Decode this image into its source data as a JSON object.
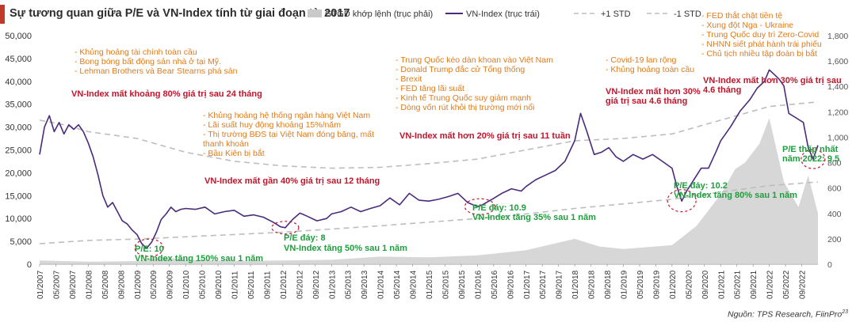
{
  "title": "Sự tương quan giữa P/E và VN-Index tính từ giai đoạn từ 2017",
  "source": "Nguồn: TPS Research, FiinPro",
  "colors": {
    "vnindex": "#4b2a7b",
    "gtgd": "#c9c9c9",
    "std": "#bdbdbd",
    "orange_text": "#e07b1a",
    "red_text": "#c0152b",
    "green_text": "#1e9e3c",
    "circle": "#c0152b",
    "title_accent": "#c0392b"
  },
  "chart_data": {
    "type": "line",
    "title": "Sự tương quan giữa P/E và VN-Index tính từ giai đoạn từ 2017",
    "legend": [
      {
        "label": "GTGD khớp lệnh (trục phải)",
        "style": "area"
      },
      {
        "label": "VN-Index (trục trái)",
        "style": "line"
      },
      {
        "label": "+1 STD",
        "style": "dashed"
      },
      {
        "label": "-1 STD",
        "style": "dashed"
      }
    ],
    "legend_position": "top",
    "y_left": {
      "ticks": [
        0,
        5000,
        10000,
        15000,
        20000,
        25000,
        30000,
        35000,
        40000,
        45000,
        50000
      ],
      "labels": [
        "0",
        "5,000",
        "10,000",
        "15,000",
        "20,000",
        "25,000",
        "30,000",
        "35,000",
        "40,000",
        "45,000",
        "50,000"
      ],
      "ylim": [
        0,
        50000
      ]
    },
    "y_right": {
      "ticks": [
        0,
        200,
        400,
        600,
        800,
        1000,
        1200,
        1400,
        1600,
        1800
      ],
      "labels": [
        "0",
        "200",
        "400",
        "600",
        "800",
        "1,000",
        "1,200",
        "1,400",
        "1,600",
        "1,800"
      ],
      "ylim": [
        0,
        1800
      ]
    },
    "x_labels": [
      "01/2007",
      "05/2007",
      "09/2007",
      "01/2008",
      "05/2008",
      "09/2008",
      "01/2009",
      "05/2009",
      "09/2009",
      "01/2010",
      "05/2010",
      "09/2010",
      "01/2011",
      "05/2011",
      "09/2011",
      "01/2012",
      "05/2012",
      "09/2012",
      "01/2013",
      "05/2013",
      "09/2013",
      "01/2014",
      "05/2014",
      "09/2014",
      "01/2015",
      "05/2015",
      "09/2015",
      "01/2016",
      "05/2016",
      "09/2016",
      "01/2017",
      "05/2017",
      "09/2017",
      "01/2018",
      "05/2018",
      "09/2018",
      "01/2019",
      "05/2019",
      "09/2019",
      "01/2020",
      "05/2020",
      "09/2020",
      "01/2021",
      "05/2021",
      "09/2021",
      "01/2022",
      "05/2022",
      "09/2022"
    ],
    "series": [
      {
        "name": "VN-Index (trục trái)",
        "axis": "left",
        "points": [
          [
            2007.0,
            24000
          ],
          [
            2007.1,
            30000
          ],
          [
            2007.2,
            32500
          ],
          [
            2007.3,
            29000
          ],
          [
            2007.4,
            31000
          ],
          [
            2007.5,
            28500
          ],
          [
            2007.6,
            30500
          ],
          [
            2007.7,
            29500
          ],
          [
            2007.8,
            30500
          ],
          [
            2007.9,
            29000
          ],
          [
            2008.0,
            26500
          ],
          [
            2008.1,
            23500
          ],
          [
            2008.2,
            19500
          ],
          [
            2008.3,
            15000
          ],
          [
            2008.4,
            12500
          ],
          [
            2008.5,
            13500
          ],
          [
            2008.6,
            11500
          ],
          [
            2008.7,
            9500
          ],
          [
            2008.8,
            8800
          ],
          [
            2008.9,
            7500
          ],
          [
            2009.0,
            6500
          ],
          [
            2009.1,
            4500
          ],
          [
            2009.2,
            3500
          ],
          [
            2009.3,
            4800
          ],
          [
            2009.4,
            7000
          ],
          [
            2009.5,
            9800
          ],
          [
            2009.6,
            11000
          ],
          [
            2009.7,
            12500
          ],
          [
            2009.8,
            11500
          ],
          [
            2009.9,
            12000
          ],
          [
            2010.0,
            12200
          ],
          [
            2010.2,
            12000
          ],
          [
            2010.4,
            12500
          ],
          [
            2010.6,
            11000
          ],
          [
            2010.8,
            11500
          ],
          [
            2011.0,
            11800
          ],
          [
            2011.2,
            10500
          ],
          [
            2011.4,
            10800
          ],
          [
            2011.6,
            10300
          ],
          [
            2011.8,
            9200
          ],
          [
            2011.95,
            8200
          ],
          [
            2012.05,
            8000
          ],
          [
            2012.2,
            9800
          ],
          [
            2012.35,
            11200
          ],
          [
            2012.5,
            10500
          ],
          [
            2012.7,
            9500
          ],
          [
            2012.9,
            10000
          ],
          [
            2013.0,
            11000
          ],
          [
            2013.2,
            11500
          ],
          [
            2013.4,
            12500
          ],
          [
            2013.6,
            11500
          ],
          [
            2013.8,
            12200
          ],
          [
            2014.0,
            12800
          ],
          [
            2014.2,
            14500
          ],
          [
            2014.4,
            13000
          ],
          [
            2014.6,
            15500
          ],
          [
            2014.8,
            14000
          ],
          [
            2015.0,
            13800
          ],
          [
            2015.2,
            14200
          ],
          [
            2015.4,
            14800
          ],
          [
            2015.6,
            15500
          ],
          [
            2015.8,
            13500
          ],
          [
            2016.0,
            12600
          ],
          [
            2016.1,
            13000
          ],
          [
            2016.3,
            14200
          ],
          [
            2016.5,
            15500
          ],
          [
            2016.7,
            16500
          ],
          [
            2016.9,
            16000
          ],
          [
            2017.0,
            17000
          ],
          [
            2017.2,
            18500
          ],
          [
            2017.4,
            19500
          ],
          [
            2017.6,
            20500
          ],
          [
            2017.8,
            22500
          ],
          [
            2018.0,
            27000
          ],
          [
            2018.12,
            33000
          ],
          [
            2018.25,
            29000
          ],
          [
            2018.4,
            24000
          ],
          [
            2018.55,
            24500
          ],
          [
            2018.7,
            25500
          ],
          [
            2018.85,
            23500
          ],
          [
            2019.0,
            22500
          ],
          [
            2019.2,
            24000
          ],
          [
            2019.4,
            23000
          ],
          [
            2019.6,
            24000
          ],
          [
            2019.8,
            22500
          ],
          [
            2020.0,
            21000
          ],
          [
            2020.1,
            17000
          ],
          [
            2020.2,
            13800
          ],
          [
            2020.3,
            16000
          ],
          [
            2020.45,
            18500
          ],
          [
            2020.6,
            21000
          ],
          [
            2020.75,
            21000
          ],
          [
            2020.9,
            24500
          ],
          [
            2021.0,
            27000
          ],
          [
            2021.2,
            30000
          ],
          [
            2021.4,
            33500
          ],
          [
            2021.6,
            36000
          ],
          [
            2021.75,
            38500
          ],
          [
            2021.9,
            40000
          ],
          [
            2022.0,
            42500
          ],
          [
            2022.1,
            41500
          ],
          [
            2022.2,
            40500
          ],
          [
            2022.3,
            39000
          ],
          [
            2022.4,
            33000
          ],
          [
            2022.55,
            32000
          ],
          [
            2022.7,
            31000
          ],
          [
            2022.8,
            25500
          ],
          [
            2022.9,
            23000
          ],
          [
            2023.0,
            26000
          ]
        ]
      },
      {
        "name": "+1 STD",
        "axis": "left",
        "points": [
          [
            2007.0,
            31500
          ],
          [
            2007.5,
            30500
          ],
          [
            2008.0,
            29000
          ],
          [
            2009.0,
            27500
          ],
          [
            2010.0,
            24500
          ],
          [
            2011.0,
            22500
          ],
          [
            2012.0,
            21500
          ],
          [
            2013.0,
            21000
          ],
          [
            2014.0,
            21200
          ],
          [
            2015.0,
            22000
          ],
          [
            2016.0,
            23000
          ],
          [
            2017.0,
            25000
          ],
          [
            2018.0,
            27000
          ],
          [
            2019.0,
            27500
          ],
          [
            2020.0,
            28500
          ],
          [
            2021.0,
            31500
          ],
          [
            2022.0,
            34500
          ],
          [
            2023.0,
            35500
          ]
        ]
      },
      {
        "name": "-1 STD",
        "axis": "left",
        "points": [
          [
            2007.0,
            4500
          ],
          [
            2008.0,
            5200
          ],
          [
            2009.0,
            5500
          ],
          [
            2010.0,
            6000
          ],
          [
            2011.0,
            6500
          ],
          [
            2012.0,
            7000
          ],
          [
            2013.0,
            7700
          ],
          [
            2014.0,
            8400
          ],
          [
            2015.0,
            9200
          ],
          [
            2016.0,
            10000
          ],
          [
            2017.0,
            11000
          ],
          [
            2018.0,
            12200
          ],
          [
            2019.0,
            13200
          ],
          [
            2020.0,
            14200
          ],
          [
            2021.0,
            15800
          ],
          [
            2022.0,
            17200
          ],
          [
            2023.0,
            18000
          ]
        ]
      },
      {
        "name": "GTGD khớp lệnh (trục phải)",
        "axis": "right",
        "type": "area",
        "points": [
          [
            2007.0,
            30
          ],
          [
            2008.0,
            20
          ],
          [
            2009.0,
            25
          ],
          [
            2009.5,
            55
          ],
          [
            2010.0,
            35
          ],
          [
            2011.0,
            25
          ],
          [
            2012.0,
            30
          ],
          [
            2013.0,
            35
          ],
          [
            2014.0,
            60
          ],
          [
            2015.0,
            55
          ],
          [
            2016.0,
            70
          ],
          [
            2017.0,
            110
          ],
          [
            2018.0,
            200
          ],
          [
            2018.5,
            140
          ],
          [
            2019.0,
            120
          ],
          [
            2020.0,
            150
          ],
          [
            2020.5,
            300
          ],
          [
            2021.0,
            550
          ],
          [
            2021.3,
            750
          ],
          [
            2021.5,
            800
          ],
          [
            2021.8,
            950
          ],
          [
            2022.0,
            1150
          ],
          [
            2022.3,
            650
          ],
          [
            2022.6,
            450
          ],
          [
            2022.8,
            700
          ],
          [
            2023.0,
            400
          ]
        ]
      }
    ],
    "annotations": [
      {
        "style": "orange",
        "lines": [
          "- Khủng hoảng tài chính toàn cầu",
          "- Bong bóng bất động sản nhà ở tại Mỹ.",
          "- Lehman Brothers và Bear Stearns phá sản"
        ]
      },
      {
        "style": "red",
        "lines": [
          "VN-Index mất khoảng 80% giá trị sau 24 tháng"
        ]
      },
      {
        "style": "orange",
        "lines": [
          "- Khủng hoảng hệ thống ngân hàng Việt Nam",
          "- Lãi suất huy động khoảng 15%/năm",
          "- Thị trường BĐS tại Việt Nam đóng băng, mất",
          "thanh khoản",
          "- Bầu Kiên bị bắt"
        ]
      },
      {
        "style": "red",
        "lines": [
          "VN-Index mất gần 40% giá trị sau 12 tháng"
        ]
      },
      {
        "style": "orange",
        "lines": [
          "- Trung Quốc kéo dàn khoan vào Việt Nam",
          "- Donald Trump đắc cử Tổng thống",
          "- Brexit",
          "- FED tăng lãi suất",
          "- Kinh tế Trung Quốc suy giảm mạnh",
          "- Dòng vốn rút khỏi thị trường mới nổi"
        ]
      },
      {
        "style": "red",
        "lines": [
          "VN-Index mất hơn 20% giá trị sau 11 tuần"
        ]
      },
      {
        "style": "orange",
        "lines": [
          "- Covid-19 lan rộng",
          "- Khủng hoảng toàn cầu"
        ]
      },
      {
        "style": "red",
        "lines": [
          "VN-Index mất hơn 30%",
          "giá trị sau 4.6 tháng"
        ]
      },
      {
        "style": "orange",
        "lines": [
          "- FED thắt chặt tiền tệ",
          "- Xung đột Nga - Ukraine",
          "- Trung Quốc duy trì Zero-Covid",
          "- NHNN siết phát hành trái phiếu",
          "- Chủ tịch nhiều tập đoàn bị bắt"
        ]
      },
      {
        "style": "red",
        "lines": [
          "VN-Index mất hơn 30% giá trị sau",
          "4.6 tháng"
        ]
      },
      {
        "style": "green",
        "lines": [
          "P/E: 10",
          "VN-Index tăng 150% sau 1 năm"
        ]
      },
      {
        "style": "green",
        "lines": [
          "P/E đáy: 8",
          "VN-Index tăng 50% sau 1 năm"
        ]
      },
      {
        "style": "green",
        "lines": [
          "P/E đáy: 10.9",
          "VN-Index tăng 35% sau 1 năm"
        ]
      },
      {
        "style": "green",
        "lines": [
          "P/E đáy: 10.2",
          "VN-Index tăng 80% sau 1 năm"
        ]
      },
      {
        "style": "green",
        "lines": [
          "P/E thấp nhất",
          "năm 2022: 9.5"
        ]
      }
    ]
  }
}
